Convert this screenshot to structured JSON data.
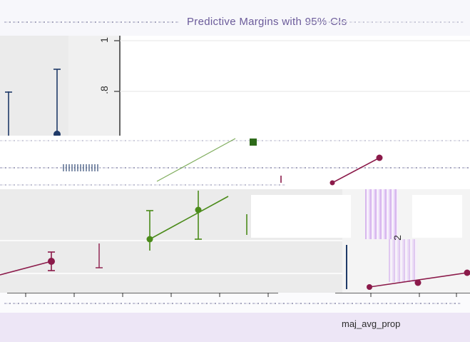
{
  "window": {
    "title_fragment": "Predictive Margins with 95% CIs"
  },
  "figure": {
    "xlabel": "maj_avg_prop",
    "ytick_labels": [
      "1",
      ".8"
    ],
    "side_tick_label": "2"
  },
  "colors": {
    "background": "#ffffff",
    "panel": "#ebebeb",
    "maroon_series": "#8b1a4a",
    "green_series": "#4b8b1a",
    "navy_series": "#1f3a68",
    "title_purple": "#6b5b9a",
    "footer_lavender": "#ede6f6"
  }
}
